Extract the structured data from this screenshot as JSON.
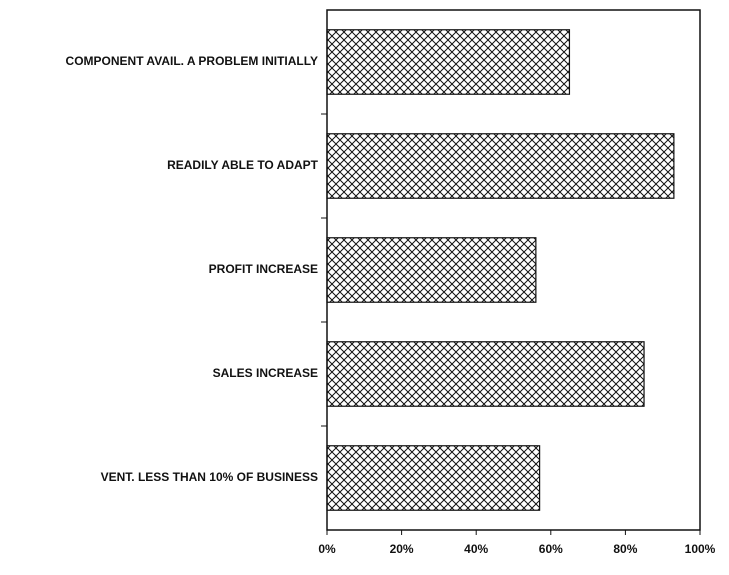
{
  "chart_data": {
    "type": "barh",
    "categories": [
      "COMPONENT AVAIL. A PROBLEM INITIALLY",
      "READILY ABLE TO ADAPT",
      "PROFIT INCREASE",
      "SALES INCREASE",
      "VENT. LESS THAN 10% OF BUSINESS"
    ],
    "values": [
      65,
      93,
      56,
      85,
      57
    ],
    "color": "#111111",
    "xlim": [
      0,
      100
    ],
    "xticks": [
      {
        "value": 0,
        "label": "0%"
      },
      {
        "value": 20,
        "label": "20%"
      },
      {
        "value": 40,
        "label": "40%"
      },
      {
        "value": 60,
        "label": "60%"
      },
      {
        "value": 80,
        "label": "80%"
      },
      {
        "value": 100,
        "label": "100%"
      }
    ]
  }
}
